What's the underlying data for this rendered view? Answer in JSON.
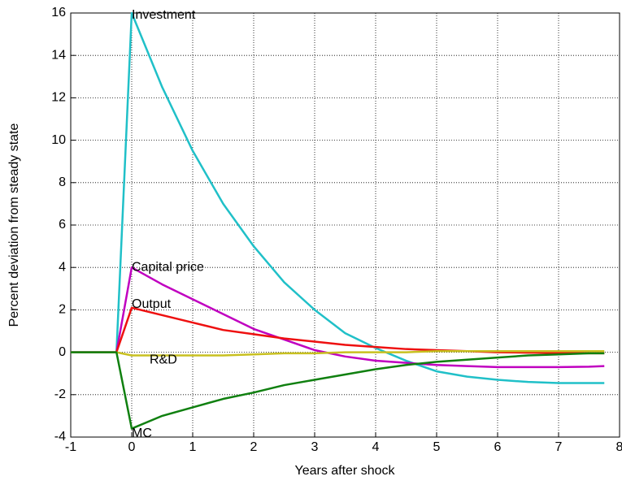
{
  "chart_data": {
    "type": "line",
    "xlabel": "Years after shock",
    "ylabel": "Percent deviation from steady state",
    "x": [
      -1,
      -0.5,
      -0.25,
      0,
      0.5,
      1,
      1.5,
      2,
      2.5,
      3,
      3.5,
      4,
      4.5,
      5,
      5.5,
      6,
      6.5,
      7,
      7.5,
      7.75
    ],
    "series": [
      {
        "name": "Investment",
        "color": "#20c0c8",
        "values": [
          0,
          0,
          0,
          16,
          12.5,
          9.5,
          7,
          5,
          3.3,
          2,
          0.9,
          0.2,
          -0.4,
          -0.9,
          -1.15,
          -1.3,
          -1.4,
          -1.45,
          -1.45,
          -1.45
        ]
      },
      {
        "name": "Capital price",
        "color": "#c000c0",
        "values": [
          0,
          0,
          0,
          4,
          3.2,
          2.5,
          1.8,
          1.1,
          0.6,
          0.1,
          -0.2,
          -0.4,
          -0.5,
          -0.6,
          -0.65,
          -0.7,
          -0.7,
          -0.7,
          -0.68,
          -0.65
        ]
      },
      {
        "name": "Output",
        "color": "#ee1010",
        "values": [
          0,
          0,
          0,
          2.1,
          1.75,
          1.4,
          1.05,
          0.85,
          0.65,
          0.5,
          0.35,
          0.25,
          0.15,
          0.1,
          0.05,
          0,
          -0.02,
          -0.03,
          -0.05,
          -0.05
        ]
      },
      {
        "name": "R&D",
        "color": "#c8c020",
        "values": [
          0,
          0,
          0,
          -0.15,
          -0.15,
          -0.15,
          -0.15,
          -0.1,
          -0.05,
          -0.05,
          0,
          0,
          0,
          0.05,
          0.05,
          0.05,
          0.05,
          0.05,
          0.05,
          0.05
        ]
      },
      {
        "name": "MC",
        "color": "#108010",
        "values": [
          0,
          0,
          0,
          -3.6,
          -3,
          -2.6,
          -2.2,
          -1.9,
          -1.55,
          -1.3,
          -1.05,
          -0.8,
          -0.6,
          -0.45,
          -0.35,
          -0.25,
          -0.15,
          -0.1,
          -0.05,
          -0.05
        ]
      }
    ],
    "xlim": [
      -1,
      8
    ],
    "xticks": [
      -1,
      0,
      1,
      2,
      3,
      4,
      5,
      6,
      7,
      8
    ],
    "ylim": [
      -4,
      16
    ],
    "yticks": [
      -4,
      -2,
      0,
      2,
      4,
      6,
      8,
      10,
      12,
      14,
      16
    ],
    "grid": true
  }
}
